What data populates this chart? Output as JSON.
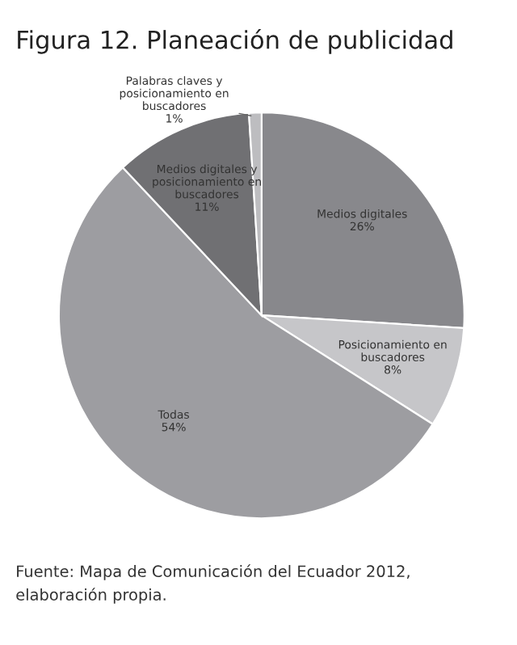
{
  "chart_data": {
    "type": "pie",
    "title": "Figura 12. Planeación de publicidad",
    "categories": [
      "Medios digitales",
      "Posicionamiento en\nbuscadores",
      "Todas",
      "Medios digitales y\nposicionamiento en\nbuscadores",
      "Palabras claves y\nposicionamiento en\nbuscadores"
    ],
    "values": [
      26,
      8,
      54,
      11,
      1
    ],
    "value_labels": [
      "26%",
      "8%",
      "54%",
      "11%",
      "1%"
    ],
    "colors": [
      "#88888c",
      "#c6c6c9",
      "#9d9da1",
      "#707073",
      "#bdbdc0"
    ],
    "annotations": [
      "Fuente: Mapa de Comunicación del Ecuador 2012,\nelaboración propia."
    ]
  }
}
